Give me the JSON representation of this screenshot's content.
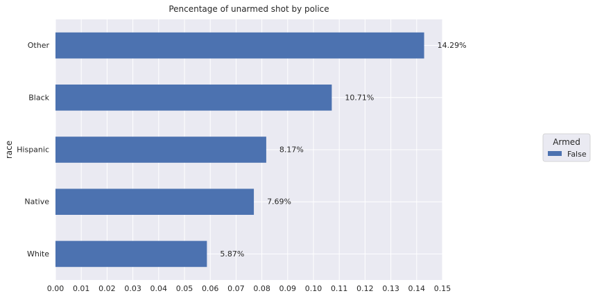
{
  "chart_data": {
    "type": "bar",
    "orientation": "horizontal",
    "title": "Pencentage of unarmed shot by police",
    "xlabel": "",
    "ylabel": "race",
    "categories": [
      "White",
      "Native",
      "Hispanic",
      "Black",
      "Other"
    ],
    "series": [
      {
        "name": "False",
        "values": [
          0.0587,
          0.0769,
          0.0817,
          0.1071,
          0.1429
        ],
        "color": "#4c72b0"
      }
    ],
    "data_labels": [
      "5.87%",
      "7.69%",
      "8.17%",
      "10.71%",
      "14.29%"
    ],
    "xlim": [
      0,
      0.15
    ],
    "xticks": [
      "0.00",
      "0.01",
      "0.02",
      "0.03",
      "0.04",
      "0.05",
      "0.06",
      "0.07",
      "0.08",
      "0.09",
      "0.10",
      "0.11",
      "0.12",
      "0.13",
      "0.14",
      "0.15"
    ],
    "grid": true,
    "background_color": "#eaeaf2",
    "legend": {
      "title": "Armed",
      "placement": "center-right outside",
      "entries": [
        "False"
      ]
    }
  }
}
